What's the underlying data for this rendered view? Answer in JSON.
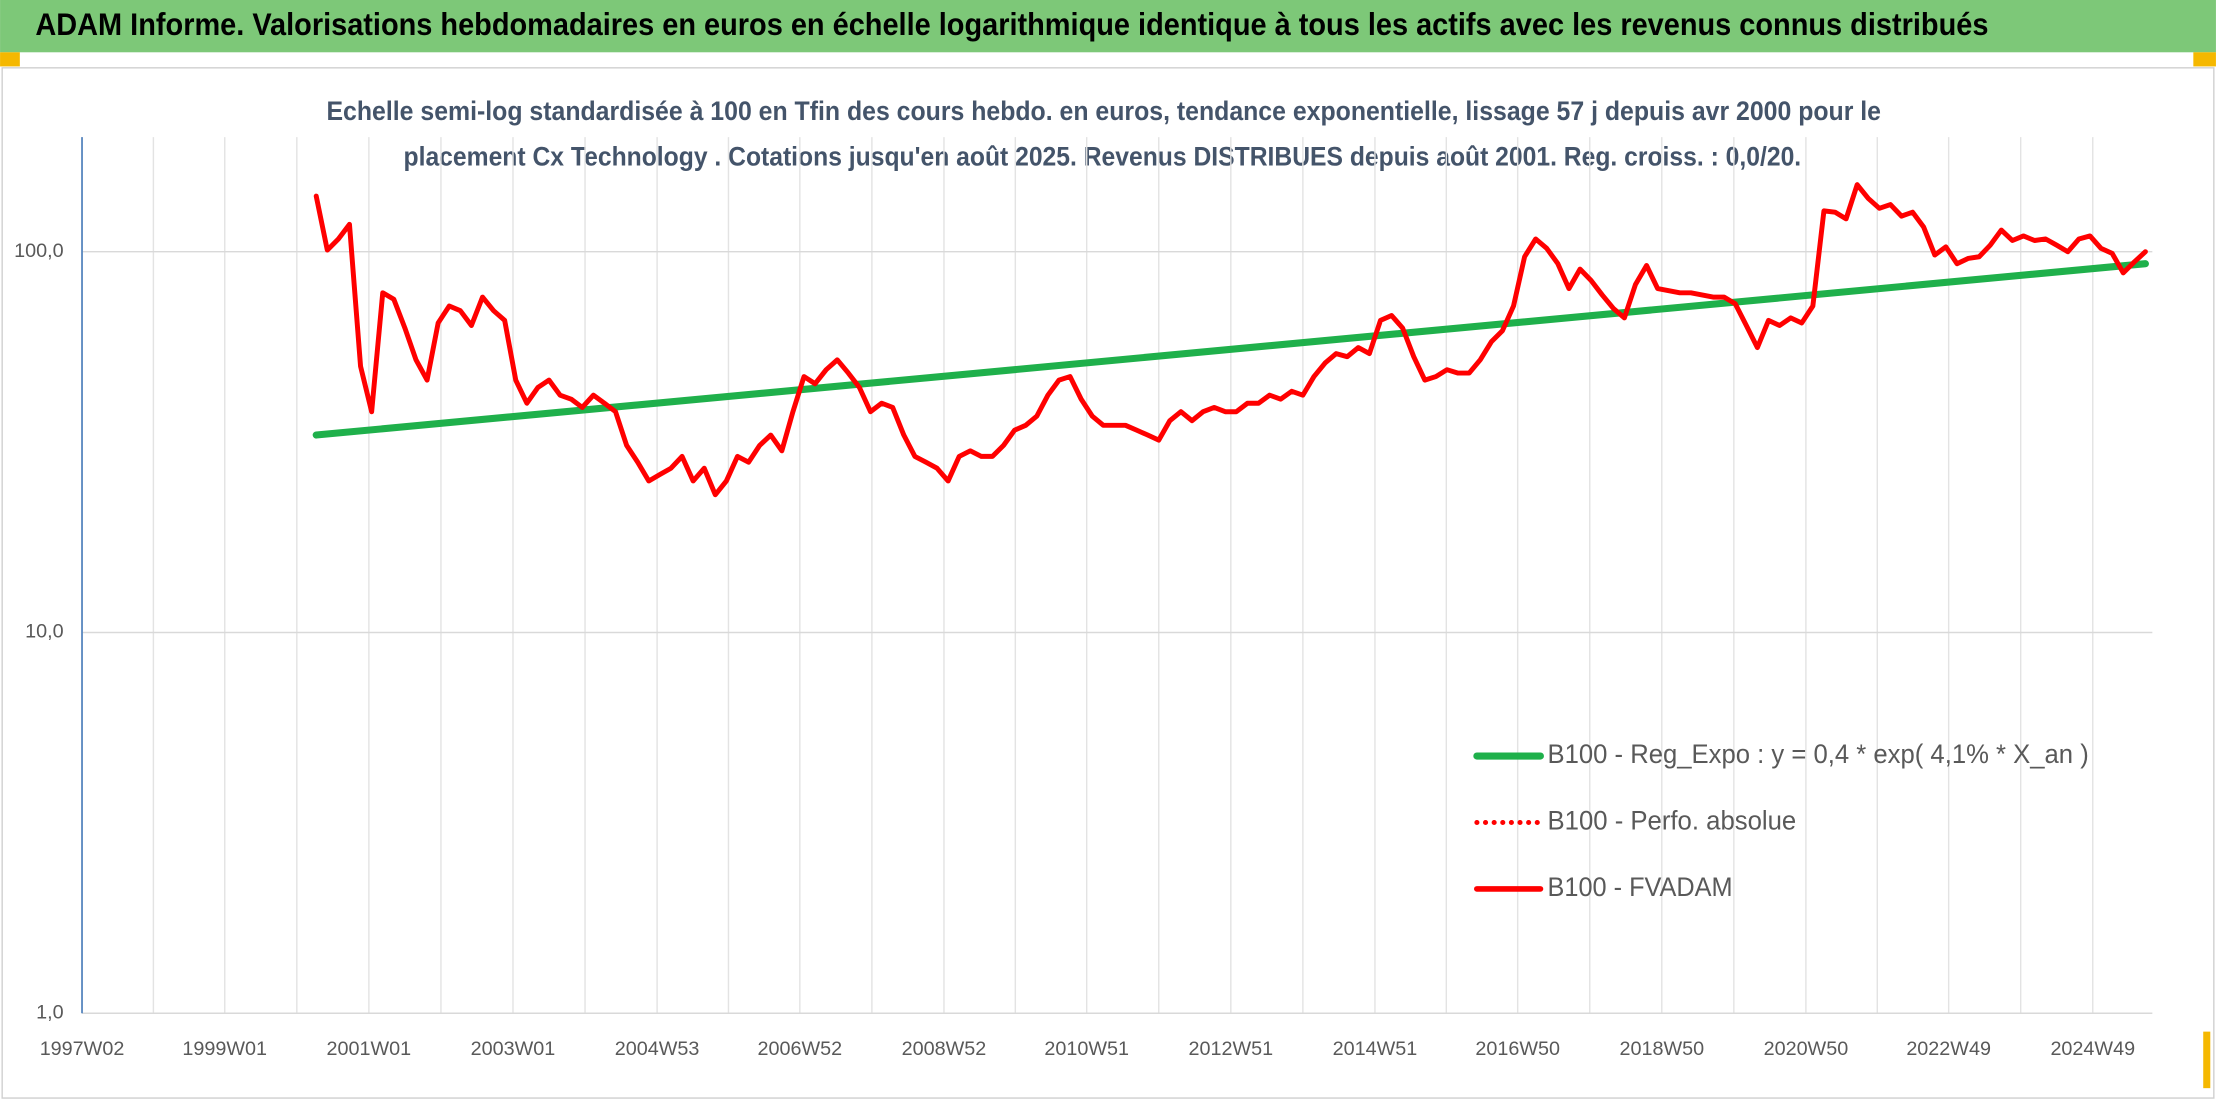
{
  "chart_data": {
    "type": "line",
    "title": "ADAM Informe. Valorisations hebdomadaires en euros en échelle logarithmique identique à tous les actifs avec les revenus connus distribués",
    "subtitle": [
      "Echelle semi-log standardisée à 100 en Tfin des cours hebdo. en euros, tendance exponentielle, lissage 57 j depuis avr 2000 pour le",
      "placement Cx Technology . Cotations jusqu'en août 2025. Revenus DISTRIBUES depuis août 2001. Reg. croiss. : 0,0/20."
    ],
    "log_scale": true,
    "grid": true,
    "legend_position": "lower-right",
    "ylim": [
      1,
      200
    ],
    "yticks": [
      {
        "value": 1,
        "label": "1,0"
      },
      {
        "value": 10,
        "label": "10,0"
      },
      {
        "value": 100,
        "label": "100,0"
      }
    ],
    "xlim": [
      "1997W02",
      "2025W40"
    ],
    "categories": [
      "1997W02",
      null,
      "1999W01",
      null,
      "2001W01",
      null,
      "2003W01",
      null,
      "2004W53",
      null,
      "2006W52",
      null,
      "2008W52",
      null,
      "2010W51",
      null,
      "2012W51",
      null,
      "2014W51",
      null,
      "2016W50",
      null,
      "2018W50",
      null,
      "2020W50",
      null,
      "2022W49",
      null,
      "2024W49"
    ],
    "series": [
      {
        "name": "B100 - Reg_Expo : y = 0,4 * exp( 4,1% *  X_an )",
        "color": "#1fb04b",
        "style": "solid",
        "x": [
          "2000W15",
          "2025W35"
        ],
        "values": [
          33,
          93
        ]
      },
      {
        "name": "B100 - Perfo. absolue",
        "color": "#ff0000",
        "style": "dotted"
      },
      {
        "name": "B100 - FVADAM",
        "color": "#ff0000",
        "style": "solid",
        "x": [
          "2000W15",
          "2000W23",
          "2000W31",
          "2000W39",
          "2000W47",
          "2001W03",
          "2001W11",
          "2001W19",
          "2001W27",
          "2001W35",
          "2001W43",
          "2001W51",
          "2002W07",
          "2002W15",
          "2002W23",
          "2002W31",
          "2002W39",
          "2002W47",
          "2003W03",
          "2003W11",
          "2003W19",
          "2003W27",
          "2003W35",
          "2003W43",
          "2003W51",
          "2004W07",
          "2004W15",
          "2004W23",
          "2004W31",
          "2004W39",
          "2004W47",
          "2005W03",
          "2005W11",
          "2005W19",
          "2005W27",
          "2005W35",
          "2005W43",
          "2005W51",
          "2006W07",
          "2006W15",
          "2006W23",
          "2006W31",
          "2006W39",
          "2006W47",
          "2007W03",
          "2007W11",
          "2007W19",
          "2007W27",
          "2007W35",
          "2007W43",
          "2007W51",
          "2008W07",
          "2008W15",
          "2008W23",
          "2008W31",
          "2008W39",
          "2008W47",
          "2009W03",
          "2009W11",
          "2009W19",
          "2009W27",
          "2009W35",
          "2009W43",
          "2009W51",
          "2010W07",
          "2010W15",
          "2010W23",
          "2010W31",
          "2010W39",
          "2010W47",
          "2011W03",
          "2011W11",
          "2011W19",
          "2011W27",
          "2011W35",
          "2011W43",
          "2011W51",
          "2012W07",
          "2012W15",
          "2012W23",
          "2012W31",
          "2012W39",
          "2012W47",
          "2013W03",
          "2013W11",
          "2013W19",
          "2013W27",
          "2013W35",
          "2013W43",
          "2013W51",
          "2014W07",
          "2014W15",
          "2014W23",
          "2014W31",
          "2014W39",
          "2014W47",
          "2015W03",
          "2015W11",
          "2015W19",
          "2015W27",
          "2015W35",
          "2015W43",
          "2015W51",
          "2016W07",
          "2016W15",
          "2016W23",
          "2016W31",
          "2016W39",
          "2016W47",
          "2017W03",
          "2017W11",
          "2017W19",
          "2017W27",
          "2017W35",
          "2017W43",
          "2017W51",
          "2018W07",
          "2018W15",
          "2018W23",
          "2018W31",
          "2018W39",
          "2018W47",
          "2019W03",
          "2019W11",
          "2019W19",
          "2019W27",
          "2019W35",
          "2019W43",
          "2019W51",
          "2020W07",
          "2020W15",
          "2020W23",
          "2020W31",
          "2020W39",
          "2020W47",
          "2021W03",
          "2021W11",
          "2021W19",
          "2021W27",
          "2021W35",
          "2021W43",
          "2021W51",
          "2022W07",
          "2022W15",
          "2022W23",
          "2022W31",
          "2022W39",
          "2022W47",
          "2023W03",
          "2023W11",
          "2023W19",
          "2023W27",
          "2023W35",
          "2023W43",
          "2023W51",
          "2024W07",
          "2024W15",
          "2024W23",
          "2024W31",
          "2024W39",
          "2024W47",
          "2025W03",
          "2025W11",
          "2025W19",
          "2025W27",
          "2025W35"
        ],
        "values": [
          140,
          101,
          108,
          118,
          50,
          38,
          78,
          75,
          63,
          52,
          46,
          65,
          72,
          70,
          64,
          76,
          70,
          66,
          46,
          40,
          44,
          46,
          42,
          41,
          39,
          42,
          40,
          38,
          31,
          28,
          25,
          26,
          27,
          29,
          25,
          27,
          23,
          25,
          29,
          28,
          31,
          33,
          30,
          38,
          47,
          45,
          49,
          52,
          48,
          44,
          38,
          40,
          39,
          33,
          29,
          28,
          27,
          25,
          29,
          30,
          29,
          29,
          31,
          34,
          35,
          37,
          42,
          46,
          47,
          41,
          37,
          35,
          35,
          35,
          34,
          33,
          32,
          36,
          38,
          36,
          38,
          39,
          38,
          38,
          40,
          40,
          42,
          41,
          43,
          42,
          47,
          51,
          54,
          53,
          56,
          54,
          66,
          68,
          63,
          53,
          46,
          47,
          49,
          48,
          48,
          52,
          58,
          62,
          72,
          97,
          108,
          102,
          93,
          80,
          90,
          84,
          77,
          71,
          67,
          82,
          92,
          80,
          79,
          78,
          78,
          77,
          76,
          76,
          73,
          64,
          56,
          66,
          64,
          67,
          65,
          72,
          128,
          127,
          122,
          150,
          138,
          130,
          133,
          124,
          127,
          116,
          98,
          103,
          93,
          96,
          97,
          104,
          114,
          107,
          110,
          107,
          108,
          104,
          100,
          108,
          110,
          102,
          99,
          88,
          94,
          100
        ]
      }
    ]
  }
}
